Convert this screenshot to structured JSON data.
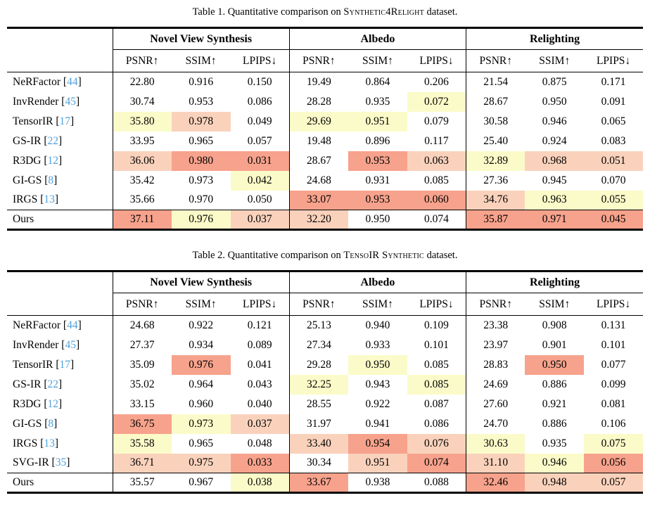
{
  "colors": {
    "rank1_best": "#F7A28C",
    "rank2_second": "#FAD2BC",
    "rank3_third": "#FBFBC9",
    "citation_blue": "#4FA1DB"
  },
  "tables": [
    {
      "caption": {
        "lead": "Table 1. Quantitative comparison on",
        "dataset": "Synthetic4Relight",
        "tail": "dataset."
      },
      "groups": [
        "Novel View Synthesis",
        "Albedo",
        "Relighting"
      ],
      "metrics": [
        "PSNR↑",
        "SSIM↑",
        "LPIPS↓"
      ],
      "rows": [
        {
          "method": "NeRFactor",
          "cite": "44",
          "values": [
            "22.80",
            "0.916",
            "0.150",
            "19.49",
            "0.864",
            "0.206",
            "21.54",
            "0.875",
            "0.171"
          ],
          "highlights": [
            0,
            0,
            0,
            0,
            0,
            0,
            0,
            0,
            0
          ]
        },
        {
          "method": "InvRender",
          "cite": "45",
          "values": [
            "30.74",
            "0.953",
            "0.086",
            "28.28",
            "0.935",
            "0.072",
            "28.67",
            "0.950",
            "0.091"
          ],
          "highlights": [
            0,
            0,
            0,
            0,
            0,
            3,
            0,
            0,
            0
          ]
        },
        {
          "method": "TensorIR",
          "cite": "17",
          "values": [
            "35.80",
            "0.978",
            "0.049",
            "29.69",
            "0.951",
            "0.079",
            "30.58",
            "0.946",
            "0.065"
          ],
          "highlights": [
            3,
            2,
            0,
            3,
            3,
            0,
            0,
            0,
            0
          ]
        },
        {
          "method": "GS-IR",
          "cite": "22",
          "values": [
            "33.95",
            "0.965",
            "0.057",
            "19.48",
            "0.896",
            "0.117",
            "25.40",
            "0.924",
            "0.083"
          ],
          "highlights": [
            0,
            0,
            0,
            0,
            0,
            0,
            0,
            0,
            0
          ]
        },
        {
          "method": "R3DG",
          "cite": "12",
          "values": [
            "36.06",
            "0.980",
            "0.031",
            "28.67",
            "0.953",
            "0.063",
            "32.89",
            "0.968",
            "0.051"
          ],
          "highlights": [
            2,
            1,
            1,
            0,
            1,
            2,
            3,
            2,
            2
          ]
        },
        {
          "method": "GI-GS",
          "cite": "8",
          "values": [
            "35.42",
            "0.973",
            "0.042",
            "24.68",
            "0.931",
            "0.085",
            "27.36",
            "0.945",
            "0.070"
          ],
          "highlights": [
            0,
            0,
            3,
            0,
            0,
            0,
            0,
            0,
            0
          ]
        },
        {
          "method": "IRGS",
          "cite": "13",
          "values": [
            "35.66",
            "0.970",
            "0.050",
            "33.07",
            "0.953",
            "0.060",
            "34.76",
            "0.963",
            "0.055"
          ],
          "highlights": [
            0,
            0,
            0,
            1,
            1,
            1,
            2,
            3,
            3
          ]
        },
        {
          "method": "Ours",
          "cite": null,
          "rule_above": true,
          "values": [
            "37.11",
            "0.976",
            "0.037",
            "32.20",
            "0.950",
            "0.074",
            "35.87",
            "0.971",
            "0.045"
          ],
          "highlights": [
            1,
            3,
            2,
            2,
            0,
            0,
            1,
            1,
            1
          ]
        }
      ]
    },
    {
      "caption": {
        "lead": "Table 2. Quantitative comparison on",
        "dataset": "TensoIR Synthetic",
        "tail": "dataset."
      },
      "groups": [
        "Novel View Synthesis",
        "Albedo",
        "Relighting"
      ],
      "metrics": [
        "PSNR↑",
        "SSIM↑",
        "LPIPS↓"
      ],
      "rows": [
        {
          "method": "NeRFactor",
          "cite": "44",
          "values": [
            "24.68",
            "0.922",
            "0.121",
            "25.13",
            "0.940",
            "0.109",
            "23.38",
            "0.908",
            "0.131"
          ],
          "highlights": [
            0,
            0,
            0,
            0,
            0,
            0,
            0,
            0,
            0
          ]
        },
        {
          "method": "InvRender",
          "cite": "45",
          "values": [
            "27.37",
            "0.934",
            "0.089",
            "27.34",
            "0.933",
            "0.101",
            "23.97",
            "0.901",
            "0.101"
          ],
          "highlights": [
            0,
            0,
            0,
            0,
            0,
            0,
            0,
            0,
            0
          ]
        },
        {
          "method": "TensorIR",
          "cite": "17",
          "values": [
            "35.09",
            "0.976",
            "0.041",
            "29.28",
            "0.950",
            "0.085",
            "28.83",
            "0.950",
            "0.077"
          ],
          "highlights": [
            0,
            1,
            0,
            0,
            3,
            0,
            0,
            1,
            0
          ]
        },
        {
          "method": "GS-IR",
          "cite": "22",
          "values": [
            "35.02",
            "0.964",
            "0.043",
            "32.25",
            "0.943",
            "0.085",
            "24.69",
            "0.886",
            "0.099"
          ],
          "highlights": [
            0,
            0,
            0,
            3,
            0,
            3,
            0,
            0,
            0
          ]
        },
        {
          "method": "R3DG",
          "cite": "12",
          "values": [
            "33.15",
            "0.960",
            "0.040",
            "28.55",
            "0.922",
            "0.087",
            "27.60",
            "0.921",
            "0.081"
          ],
          "highlights": [
            0,
            0,
            0,
            0,
            0,
            0,
            0,
            0,
            0
          ]
        },
        {
          "method": "GI-GS",
          "cite": "8",
          "values": [
            "36.75",
            "0.973",
            "0.037",
            "31.97",
            "0.941",
            "0.086",
            "24.70",
            "0.886",
            "0.106"
          ],
          "highlights": [
            1,
            3,
            2,
            0,
            0,
            0,
            0,
            0,
            0
          ]
        },
        {
          "method": "IRGS",
          "cite": "13",
          "values": [
            "35.58",
            "0.965",
            "0.048",
            "33.40",
            "0.954",
            "0.076",
            "30.63",
            "0.935",
            "0.075"
          ],
          "highlights": [
            3,
            0,
            0,
            2,
            1,
            2,
            3,
            0,
            3
          ]
        },
        {
          "method": "SVG-IR",
          "cite": "35",
          "values": [
            "36.71",
            "0.975",
            "0.033",
            "30.34",
            "0.951",
            "0.074",
            "31.10",
            "0.946",
            "0.056"
          ],
          "highlights": [
            2,
            2,
            1,
            0,
            2,
            1,
            2,
            3,
            1
          ]
        },
        {
          "method": "Ours",
          "cite": null,
          "rule_above": true,
          "values": [
            "35.57",
            "0.967",
            "0.038",
            "33.67",
            "0.938",
            "0.088",
            "32.46",
            "0.948",
            "0.057"
          ],
          "highlights": [
            0,
            0,
            3,
            1,
            0,
            0,
            1,
            2,
            2
          ]
        }
      ]
    }
  ]
}
